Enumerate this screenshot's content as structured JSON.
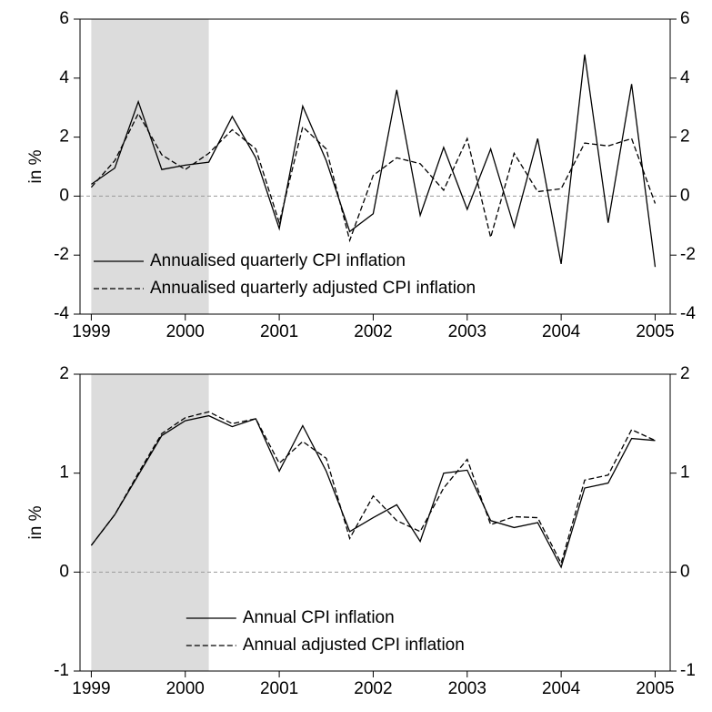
{
  "chart_data": [
    {
      "type": "line",
      "ylabel": "in %",
      "xlim": [
        1998.88,
        2005.16
      ],
      "xticks": [
        1999,
        2000,
        2001,
        2002,
        2003,
        2004,
        2005
      ],
      "ylim": [
        -4,
        6
      ],
      "yticks": [
        -4,
        -2,
        0,
        2,
        4,
        6
      ],
      "zero_line": true,
      "shade": [
        1999,
        2000.25
      ],
      "legend": "lower left",
      "x": [
        1999,
        1999.25,
        1999.5,
        1999.75,
        2000,
        2000.25,
        2000.5,
        2000.75,
        2001,
        2001.25,
        2001.5,
        2001.75,
        2002,
        2002.25,
        2002.5,
        2002.75,
        2003,
        2003.25,
        2003.5,
        2003.75,
        2004,
        2004.25,
        2004.5,
        2004.75,
        2005
      ],
      "series": [
        {
          "name": "Annualised quarterly CPI inflation",
          "color": "#000000",
          "line_style": "solid",
          "values": [
            0.4,
            0.95,
            3.2,
            0.9,
            1.05,
            1.15,
            2.7,
            1.3,
            -1.1,
            3.05,
            1.2,
            -1.2,
            -0.6,
            3.6,
            -0.65,
            1.65,
            -0.45,
            1.6,
            -1.05,
            1.95,
            -2.3,
            4.8,
            -0.9,
            3.8,
            -2.4
          ]
        },
        {
          "name": "Annualised quarterly adjusted CPI inflation",
          "color": "#000000",
          "line_style": "dashed",
          "values": [
            0.3,
            1.2,
            2.8,
            1.4,
            0.9,
            1.45,
            2.25,
            1.6,
            -0.9,
            2.35,
            1.6,
            -1.5,
            0.7,
            1.3,
            1.1,
            0.2,
            1.95,
            -1.4,
            1.45,
            0.15,
            0.25,
            1.8,
            1.7,
            1.95,
            -0.25
          ]
        }
      ]
    },
    {
      "type": "line",
      "ylabel": "in %",
      "xlim": [
        1998.88,
        2005.16
      ],
      "xticks": [
        1999,
        2000,
        2001,
        2002,
        2003,
        2004,
        2005
      ],
      "ylim": [
        -1,
        2
      ],
      "yticks": [
        -1,
        0,
        1,
        2
      ],
      "zero_line": true,
      "shade": [
        1999,
        2000.25
      ],
      "legend": "lower center",
      "x": [
        1999,
        1999.25,
        1999.5,
        1999.75,
        2000,
        2000.25,
        2000.5,
        2000.75,
        2001,
        2001.25,
        2001.5,
        2001.75,
        2002,
        2002.25,
        2002.5,
        2002.75,
        2003,
        2003.25,
        2003.5,
        2003.75,
        2004,
        2004.25,
        2004.5,
        2004.75,
        2005
      ],
      "series": [
        {
          "name": "Annual CPI inflation",
          "color": "#000000",
          "line_style": "solid",
          "values": [
            0.27,
            0.58,
            0.98,
            1.38,
            1.53,
            1.58,
            1.47,
            1.55,
            1.02,
            1.48,
            1.02,
            0.41,
            0.55,
            0.68,
            0.31,
            1.0,
            1.03,
            0.52,
            0.45,
            0.5,
            0.05,
            0.85,
            0.9,
            1.35,
            1.33
          ]
        },
        {
          "name": "Annual adjusted CPI inflation",
          "color": "#000000",
          "line_style": "dashed",
          "values": [
            0.27,
            0.58,
            1.0,
            1.4,
            1.56,
            1.62,
            1.5,
            1.55,
            1.1,
            1.32,
            1.15,
            0.34,
            0.77,
            0.52,
            0.41,
            0.85,
            1.14,
            0.48,
            0.56,
            0.55,
            0.09,
            0.93,
            0.98,
            1.44,
            1.33
          ]
        }
      ]
    }
  ]
}
